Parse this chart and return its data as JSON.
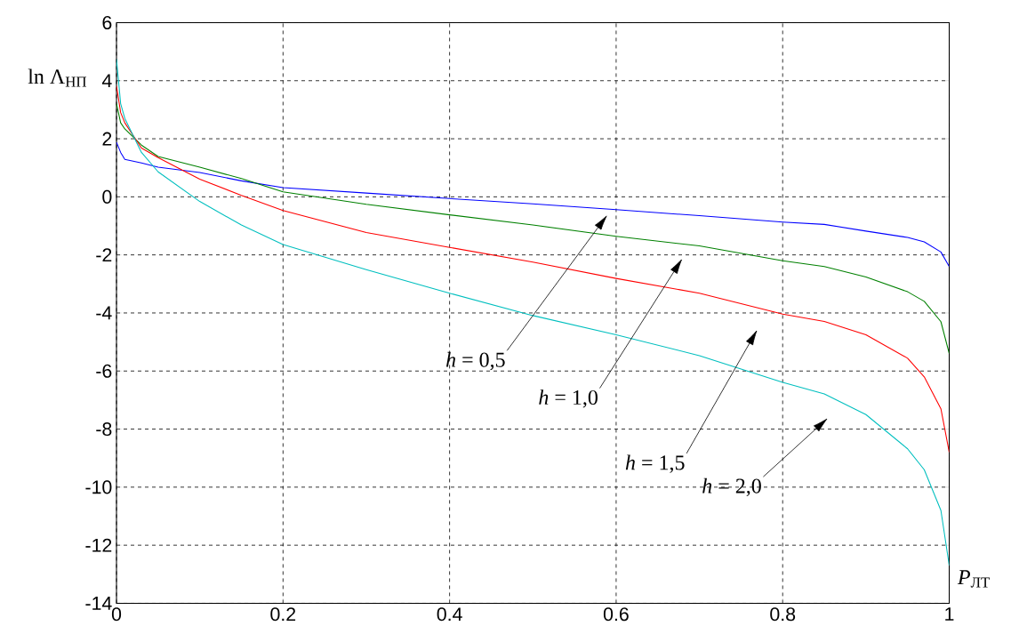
{
  "chart_data": {
    "type": "line",
    "xlabel": "*P*$_{ЛТ}$",
    "ylabel": "ln Λ$_{НП}$",
    "x": [
      0,
      0.005,
      0.01,
      0.03,
      0.05,
      0.1,
      0.15,
      0.2,
      0.3,
      0.4,
      0.5,
      0.6,
      0.7,
      0.8,
      0.85,
      0.9,
      0.95,
      0.97,
      0.99,
      1
    ],
    "series": [
      {
        "color": "#0000ff",
        "values": [
          1.88,
          1.53,
          1.29,
          1.17,
          1.02,
          0.84,
          0.55,
          0.32,
          0.13,
          -0.06,
          -0.24,
          -0.44,
          -0.65,
          -0.87,
          -0.95,
          -1.18,
          -1.4,
          -1.55,
          -1.9,
          -2.4
        ]
      },
      {
        "color": "#008000",
        "values": [
          3.21,
          2.55,
          2.34,
          1.78,
          1.39,
          1.02,
          0.63,
          0.17,
          -0.26,
          -0.62,
          -0.97,
          -1.36,
          -1.69,
          -2.2,
          -2.4,
          -2.76,
          -3.27,
          -3.6,
          -4.3,
          -5.4
        ]
      },
      {
        "color": "#ff0000",
        "values": [
          3.82,
          2.9,
          2.55,
          1.68,
          1.35,
          0.61,
          0.05,
          -0.47,
          -1.23,
          -1.74,
          -2.25,
          -2.81,
          -3.32,
          -4.04,
          -4.29,
          -4.75,
          -5.56,
          -6.2,
          -7.3,
          -8.8
        ]
      },
      {
        "color": "#00bfbf",
        "values": [
          4.74,
          3.21,
          2.7,
          1.53,
          0.86,
          -0.16,
          -0.97,
          -1.64,
          -2.51,
          -3.32,
          -4.09,
          -4.75,
          -5.47,
          -6.39,
          -6.79,
          -7.5,
          -8.68,
          -9.4,
          -10.8,
          -12.7
        ]
      }
    ],
    "annotations": [
      "*h* = 0,5",
      "*h* = 1,0",
      "*h* = 1,5",
      "*h* = 2,0"
    ],
    "xlim": [
      0,
      1
    ],
    "ylim": [
      -14,
      6
    ],
    "xticks": [
      0,
      0.2,
      0.4,
      0.6,
      0.8,
      1
    ],
    "yticks": [
      -14,
      -12,
      -10,
      -8,
      -6,
      -4,
      -2,
      0,
      2,
      4,
      6
    ],
    "grid": true
  }
}
